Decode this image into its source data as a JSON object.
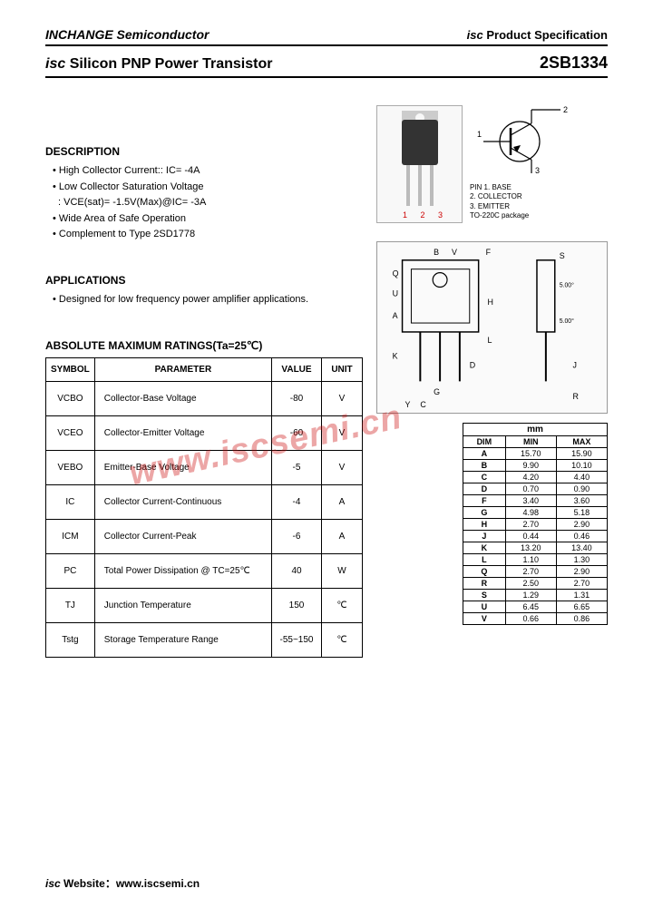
{
  "header": {
    "company": "INCHANGE Semiconductor",
    "spec_prefix": "isc",
    "spec_label": " Product Specification"
  },
  "title": {
    "prefix": "isc",
    "text": " Silicon PNP Power Transistor",
    "part": "2SB1334"
  },
  "description": {
    "heading": "DESCRIPTION",
    "items": [
      "High Collector Current:: IC= -4A",
      "Low Collector Saturation Voltage",
      "Wide Area of Safe Operation",
      "Complement to Type 2SD1778"
    ],
    "sub_line": ": VCE(sat)= -1.5V(Max)@IC= -3A"
  },
  "applications": {
    "heading": "APPLICATIONS",
    "text": "Designed for low frequency power amplifier applications."
  },
  "ratings": {
    "heading": "ABSOLUTE MAXIMUM RATINGS(Ta=25℃)",
    "columns": [
      "SYMBOL",
      "PARAMETER",
      "VALUE",
      "UNIT"
    ],
    "rows": [
      {
        "sym": "VCBO",
        "param": "Collector-Base Voltage",
        "val": "-80",
        "unit": "V"
      },
      {
        "sym": "VCEO",
        "param": "Collector-Emitter Voltage",
        "val": "-60",
        "unit": "V"
      },
      {
        "sym": "VEBO",
        "param": "Emitter-Base Voltage",
        "val": "-5",
        "unit": "V"
      },
      {
        "sym": "IC",
        "param": "Collector Current-Continuous",
        "val": "-4",
        "unit": "A"
      },
      {
        "sym": "ICM",
        "param": "Collector Current-Peak",
        "val": "-6",
        "unit": "A"
      },
      {
        "sym": "PC",
        "param": "Total Power Dissipation @ TC=25℃",
        "val": "40",
        "unit": "W"
      },
      {
        "sym": "TJ",
        "param": "Junction Temperature",
        "val": "150",
        "unit": "℃"
      },
      {
        "sym": "Tstg",
        "param": "Storage Temperature Range",
        "val": "-55~150",
        "unit": "℃"
      }
    ]
  },
  "package": {
    "pin_nums": "1 2 3",
    "schematic_pins": [
      "1",
      "2",
      "3"
    ],
    "pin_legend": [
      "PIN 1. BASE",
      "2. COLLECTOR",
      "3. EMITTER",
      "TO-220C package"
    ]
  },
  "dimensions": {
    "unit_label": "mm",
    "columns": [
      "DIM",
      "MIN",
      "MAX"
    ],
    "rows": [
      {
        "d": "A",
        "min": "15.70",
        "max": "15.90"
      },
      {
        "d": "B",
        "min": "9.90",
        "max": "10.10"
      },
      {
        "d": "C",
        "min": "4.20",
        "max": "4.40"
      },
      {
        "d": "D",
        "min": "0.70",
        "max": "0.90"
      },
      {
        "d": "F",
        "min": "3.40",
        "max": "3.60"
      },
      {
        "d": "G",
        "min": "4.98",
        "max": "5.18"
      },
      {
        "d": "H",
        "min": "2.70",
        "max": "2.90"
      },
      {
        "d": "J",
        "min": "0.44",
        "max": "0.46"
      },
      {
        "d": "K",
        "min": "13.20",
        "max": "13.40"
      },
      {
        "d": "L",
        "min": "1.10",
        "max": "1.30"
      },
      {
        "d": "Q",
        "min": "2.70",
        "max": "2.90"
      },
      {
        "d": "R",
        "min": "2.50",
        "max": "2.70"
      },
      {
        "d": "S",
        "min": "1.29",
        "max": "1.31"
      },
      {
        "d": "U",
        "min": "6.45",
        "max": "6.65"
      },
      {
        "d": "V",
        "min": "0.66",
        "max": "0.86"
      }
    ]
  },
  "watermark": "www.iscsemi.cn",
  "footer": {
    "prefix": "isc",
    "label": " Website：",
    "url": "www.iscsemi.cn"
  },
  "colors": {
    "text": "#000000",
    "accent": "#c00000",
    "border": "#000000",
    "bg": "#ffffff"
  }
}
